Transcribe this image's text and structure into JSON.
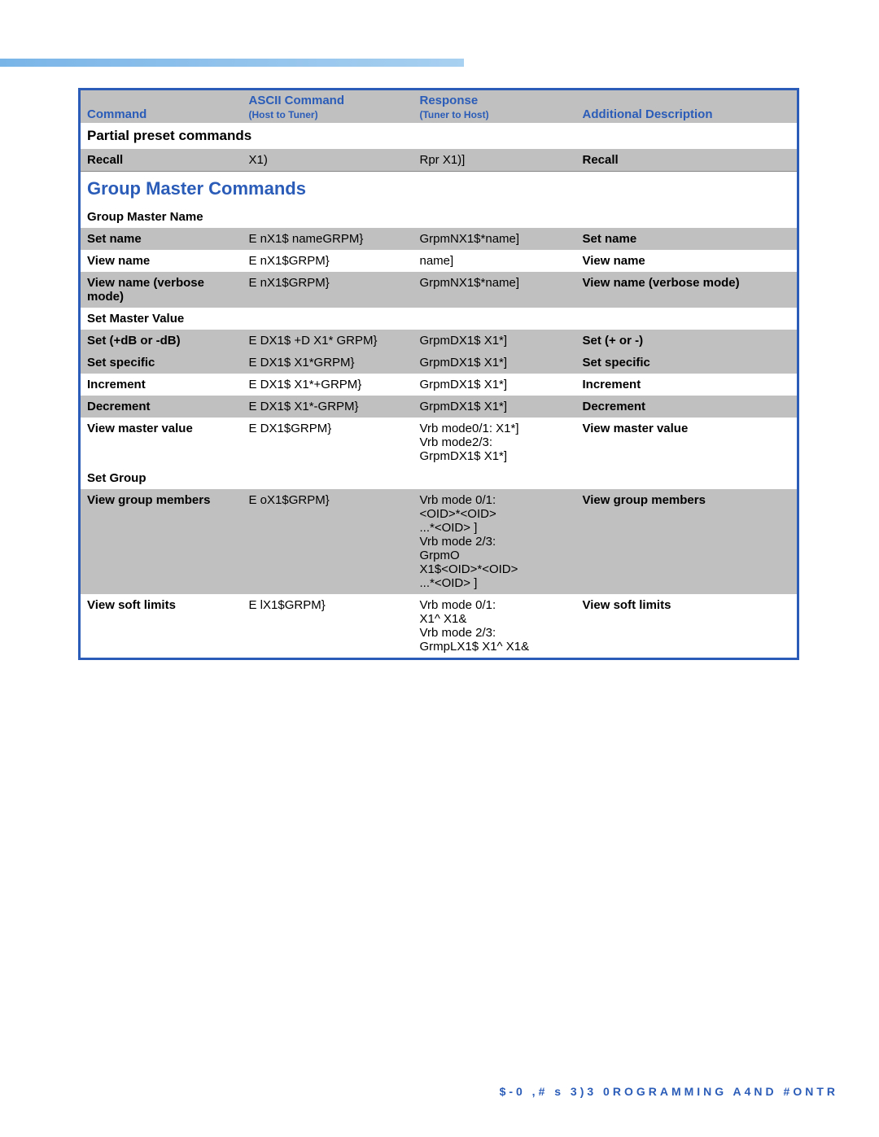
{
  "header": {
    "col1": "Command",
    "col2_top": "ASCII Command",
    "col2_sub": "(Host to Tuner)",
    "col3_top": "Response",
    "col3_sub": "(Tuner to Host)",
    "col4": "Additional Description"
  },
  "sections": {
    "partial": "Partial preset commands",
    "group_master": "Group Master Commands",
    "gmn": "Group Master Name",
    "smv": "Set Master Value",
    "sg": "Set Group"
  },
  "rows": {
    "recall": {
      "c1": "Recall",
      "c2": "X1)",
      "c3": "Rpr X1)]",
      "c4": "Recall"
    },
    "setname": {
      "c1": "Set name",
      "c2": "E   nX1$ nameGRPM}",
      "c3": "GrpmNX1$*name]",
      "c4": "Set name"
    },
    "viewname": {
      "c1": "View name",
      "c2": "E   nX1$GRPM}",
      "c3": "name]",
      "c4": "View name"
    },
    "viewnamev": {
      "c1": "View name (verbose mode)",
      "c2": "E   nX1$GRPM}",
      "c3": "GrpmNX1$*name]",
      "c4": "View name (verbose mode)"
    },
    "setbd": {
      "c1": "Set (+dB or -dB)",
      "c2": "E   DX1$ +D X1* GRPM}",
      "c3": "GrpmDX1$ X1*]",
      "c4": "Set (+ or -)"
    },
    "setspec": {
      "c1": "Set specific",
      "c2": "E   DX1$ X1*GRPM}",
      "c3": "GrpmDX1$ X1*]",
      "c4": "Set specific"
    },
    "inc": {
      "c1": "Increment",
      "c2": "E   DX1$ X1*+GRPM}",
      "c3": "GrpmDX1$ X1*]",
      "c4": "Increment"
    },
    "dec": {
      "c1": "Decrement",
      "c2": "E   DX1$ X1*-GRPM}",
      "c3": "GrpmDX1$ X1*]",
      "c4": "Decrement"
    },
    "vmv": {
      "c1": "View master value",
      "c2": "E   DX1$GRPM}",
      "c3": "Vrb mode0/1:  X1*]\nVrb mode2/3:\nGrpmDX1$ X1*]",
      "c4": "View master value"
    },
    "vgm": {
      "c1": "View group members",
      "c2": "E   oX1$GRPM}",
      "c3": "Vrb mode 0/1:\n<OID>*<OID>\n...*<OID>   ]\nVrb mode 2/3:\nGrpmO\nX1$<OID>*<OID>\n...*<OID>   ]",
      "c4": "View group members"
    },
    "vsl": {
      "c1": "View soft limits",
      "c2": "E   lX1$GRPM}",
      "c3": "Vrb mode 0/1:\nX1^ X1&\nVrb mode 2/3:\nGrmpLX1$ X1^ X1&",
      "c4": "View soft limits"
    }
  },
  "footer": "$-0   ,#  s 3)3 0ROGRAMMING A4ND #ONTR"
}
